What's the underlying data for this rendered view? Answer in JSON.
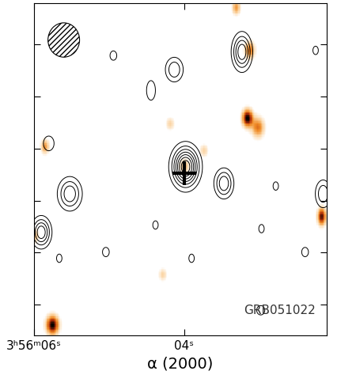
{
  "chart_data": {
    "type": "image_contour",
    "x_label": "α (2000)",
    "annotation": "GRB051022",
    "xlim": [
      6.0,
      2.1
    ],
    "xticks": [
      {
        "value": 6.0,
        "label": "3ʰ56ᵐ06ˢ"
      },
      {
        "value": 4.0,
        "label": "04ˢ"
      }
    ],
    "ylim": [
      0,
      64
    ],
    "yticks": [
      6,
      16,
      26,
      36,
      46,
      56
    ],
    "tick_labels": "x",
    "contour_levels": [
      1,
      2,
      3,
      4,
      5,
      6,
      7
    ],
    "contour_color": "#000000",
    "image_color": "#f08c28",
    "cross": {
      "x": 4.0,
      "y": 31.3,
      "marker": "+",
      "color": "#000000"
    },
    "beam": {
      "x": 5.6,
      "y": 56.9,
      "width": 0.42,
      "height": 6.6
    },
    "optical_sources": [
      {
        "x": 3.16,
        "y": 41.8,
        "peak": 1.0,
        "sx": 0.05,
        "sy": 1.2
      },
      {
        "x": 3.02,
        "y": 40.0,
        "peak": 0.6,
        "sx": 0.06,
        "sy": 1.4
      },
      {
        "x": 5.76,
        "y": 1.9,
        "peak": 1.0,
        "sx": 0.06,
        "sy": 1.3
      },
      {
        "x": 2.17,
        "y": 22.8,
        "peak": 0.9,
        "sx": 0.04,
        "sy": 1.2
      },
      {
        "x": 3.13,
        "y": 54.9,
        "peak": 0.6,
        "sx": 0.05,
        "sy": 1.2
      },
      {
        "x": 4.0,
        "y": 32.5,
        "peak": 0.4,
        "sx": 0.05,
        "sy": 1.0
      },
      {
        "x": 5.86,
        "y": 36.3,
        "peak": 0.5,
        "sx": 0.04,
        "sy": 1.0
      },
      {
        "x": 3.74,
        "y": 35.5,
        "peak": 0.3,
        "sx": 0.04,
        "sy": 0.9
      },
      {
        "x": 4.29,
        "y": 11.6,
        "peak": 0.3,
        "sx": 0.04,
        "sy": 0.9
      },
      {
        "x": 3.31,
        "y": 63.1,
        "peak": 0.5,
        "sx": 0.04,
        "sy": 1.0
      },
      {
        "x": 6.0,
        "y": 19.1,
        "peak": 0.4,
        "sx": 0.04,
        "sy": 1.0
      },
      {
        "x": 4.19,
        "y": 40.7,
        "peak": 0.3,
        "sx": 0.04,
        "sy": 0.9
      }
    ],
    "radio_sources": [
      {
        "x": 3.98,
        "y": 32.5,
        "peak": 8.0,
        "sx": 0.11,
        "sy": 2.4
      },
      {
        "x": 3.47,
        "y": 29.3,
        "peak": 4.0,
        "sx": 0.08,
        "sy": 1.8
      },
      {
        "x": 3.23,
        "y": 54.6,
        "peak": 5.0,
        "sx": 0.08,
        "sy": 2.2
      },
      {
        "x": 4.13,
        "y": 51.2,
        "peak": 3.0,
        "sx": 0.08,
        "sy": 1.6
      },
      {
        "x": 5.52,
        "y": 27.3,
        "peak": 4.0,
        "sx": 0.1,
        "sy": 2.0
      },
      {
        "x": 5.9,
        "y": 19.9,
        "peak": 5.0,
        "sx": 0.08,
        "sy": 1.8
      },
      {
        "x": 2.15,
        "y": 27.3,
        "peak": 3.0,
        "sx": 0.07,
        "sy": 1.8
      },
      {
        "x": 5.8,
        "y": 37.0,
        "peak": 2.0,
        "sx": 0.06,
        "sy": 1.2
      },
      {
        "x": 4.44,
        "y": 47.2,
        "peak": 2.0,
        "sx": 0.05,
        "sy": 1.6
      },
      {
        "x": 4.94,
        "y": 53.9,
        "peak": 1.5,
        "sx": 0.05,
        "sy": 1.0
      },
      {
        "x": 3.9,
        "y": 14.9,
        "peak": 1.5,
        "sx": 0.04,
        "sy": 0.9
      },
      {
        "x": 4.38,
        "y": 21.3,
        "peak": 1.5,
        "sx": 0.04,
        "sy": 0.9
      },
      {
        "x": 5.66,
        "y": 14.9,
        "peak": 1.5,
        "sx": 0.04,
        "sy": 0.9
      },
      {
        "x": 2.97,
        "y": 20.6,
        "peak": 1.5,
        "sx": 0.04,
        "sy": 0.9
      },
      {
        "x": 2.78,
        "y": 28.8,
        "peak": 1.5,
        "sx": 0.04,
        "sy": 0.9
      },
      {
        "x": 2.39,
        "y": 16.1,
        "peak": 1.5,
        "sx": 0.05,
        "sy": 1.0
      },
      {
        "x": 2.25,
        "y": 54.9,
        "peak": 1.5,
        "sx": 0.04,
        "sy": 0.9
      },
      {
        "x": 5.04,
        "y": 16.1,
        "peak": 1.5,
        "sx": 0.05,
        "sy": 1.0
      },
      {
        "x": 2.98,
        "y": 4.9,
        "peak": 1.5,
        "sx": 0.06,
        "sy": 1.0
      }
    ]
  }
}
